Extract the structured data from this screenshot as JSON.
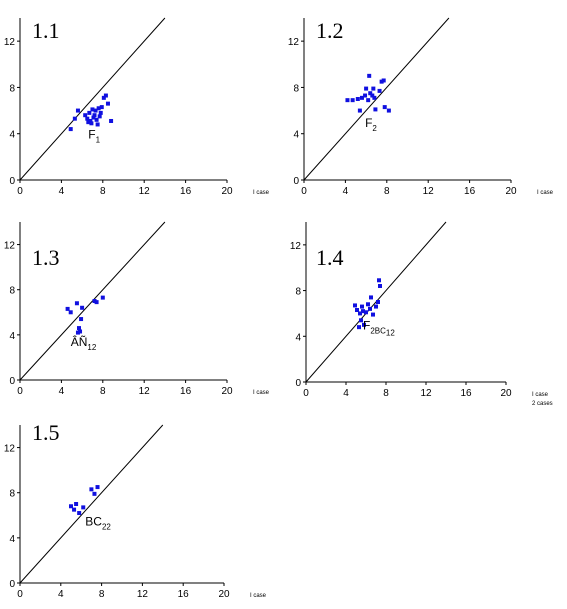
{
  "chart_data": [
    {
      "type": "scatter",
      "title": "1.1",
      "xlim": [
        0,
        20
      ],
      "ylim": [
        0,
        14
      ],
      "xticks": [
        "0",
        "4",
        "8",
        "12",
        "16",
        "20"
      ],
      "yticks": [
        "0",
        "4",
        "8",
        "12"
      ],
      "xlabel_lines": [
        "I case"
      ],
      "annotation": {
        "main": "F",
        "sub": "1",
        "x": 6.6,
        "y": 3.6
      },
      "reference_line": "y = x",
      "points": [
        [
          4.9,
          4.4
        ],
        [
          5.3,
          5.3
        ],
        [
          5.6,
          6.0
        ],
        [
          6.3,
          5.6
        ],
        [
          6.5,
          5.3
        ],
        [
          6.6,
          5.0
        ],
        [
          6.7,
          5.8
        ],
        [
          6.8,
          5.1
        ],
        [
          6.9,
          4.9
        ],
        [
          7.0,
          6.1
        ],
        [
          7.1,
          5.4
        ],
        [
          7.2,
          5.6
        ],
        [
          7.3,
          6.0
        ],
        [
          7.4,
          5.2
        ],
        [
          7.5,
          4.8
        ],
        [
          7.6,
          6.2
        ],
        [
          7.7,
          5.5
        ],
        [
          7.8,
          5.8
        ],
        [
          7.9,
          6.3
        ],
        [
          8.1,
          7.1
        ],
        [
          8.3,
          7.3
        ],
        [
          8.5,
          6.6
        ],
        [
          8.8,
          5.1
        ]
      ]
    },
    {
      "type": "scatter",
      "title": "1.2",
      "xlim": [
        0,
        20
      ],
      "ylim": [
        0,
        14
      ],
      "xticks": [
        "0",
        "4",
        "8",
        "12",
        "16",
        "20"
      ],
      "yticks": [
        "0",
        "4",
        "8",
        "12"
      ],
      "xlabel_lines": [
        "I case"
      ],
      "annotation": {
        "main": "F",
        "sub": "2",
        "x": 5.9,
        "y": 4.6
      },
      "reference_line": "y = x",
      "points": [
        [
          4.2,
          6.9
        ],
        [
          4.7,
          6.9
        ],
        [
          5.2,
          7.0
        ],
        [
          5.4,
          6.0
        ],
        [
          5.6,
          7.1
        ],
        [
          5.9,
          7.3
        ],
        [
          6.0,
          7.9
        ],
        [
          6.2,
          6.9
        ],
        [
          6.3,
          9.0
        ],
        [
          6.4,
          7.5
        ],
        [
          6.6,
          7.3
        ],
        [
          6.7,
          7.9
        ],
        [
          6.8,
          7.1
        ],
        [
          6.9,
          6.1
        ],
        [
          7.3,
          7.7
        ],
        [
          7.5,
          8.5
        ],
        [
          7.7,
          8.6
        ],
        [
          7.8,
          6.3
        ],
        [
          8.2,
          6.0
        ]
      ]
    },
    {
      "type": "scatter",
      "title": "1.3",
      "xlim": [
        0,
        20
      ],
      "ylim": [
        0,
        14
      ],
      "xticks": [
        "0",
        "4",
        "8",
        "12",
        "16",
        "20"
      ],
      "yticks": [
        "0",
        "4",
        "8",
        "12"
      ],
      "xlabel_lines": [
        "I case"
      ],
      "annotation": {
        "main": "ÂÑ",
        "sub": "12",
        "x": 4.9,
        "y": 3.0
      },
      "reference_line": "y = x",
      "points": [
        [
          4.6,
          6.3
        ],
        [
          4.9,
          6.0
        ],
        [
          5.5,
          6.8
        ],
        [
          5.6,
          4.2
        ],
        [
          5.7,
          4.6
        ],
        [
          5.8,
          4.3
        ],
        [
          5.9,
          5.4
        ],
        [
          6.0,
          6.4
        ],
        [
          7.2,
          7.0
        ],
        [
          7.4,
          6.9
        ],
        [
          8.0,
          7.3
        ]
      ]
    },
    {
      "type": "scatter",
      "title": "1.4",
      "xlim": [
        0,
        20
      ],
      "ylim": [
        0,
        14
      ],
      "xticks": [
        "0",
        "4",
        "8",
        "12",
        "16",
        "20"
      ],
      "yticks": [
        "0",
        "4",
        "8",
        "12"
      ],
      "xlabel_lines": [
        "I case",
        "2 cases"
      ],
      "annotation": {
        "main": "F",
        "sub": "2BC",
        "sub2": "12",
        "x": 5.7,
        "y": 4.6
      },
      "reference_line": "y = x",
      "points": [
        [
          4.9,
          6.7
        ],
        [
          5.1,
          6.3
        ],
        [
          5.3,
          4.8
        ],
        [
          5.4,
          6.0
        ],
        [
          5.5,
          5.4
        ],
        [
          5.6,
          6.6
        ],
        [
          5.7,
          6.2
        ],
        [
          5.8,
          5.0
        ],
        [
          6.0,
          6.1
        ],
        [
          6.2,
          6.8
        ],
        [
          6.4,
          6.4
        ],
        [
          6.5,
          7.4
        ],
        [
          6.7,
          5.9
        ],
        [
          7.0,
          6.6
        ],
        [
          7.2,
          7.0
        ],
        [
          7.3,
          8.9
        ],
        [
          7.4,
          8.4
        ]
      ]
    },
    {
      "type": "scatter",
      "title": "1.5",
      "xlim": [
        0,
        20
      ],
      "ylim": [
        0,
        14
      ],
      "xticks": [
        "0",
        "4",
        "8",
        "12",
        "16",
        "20"
      ],
      "yticks": [
        "0",
        "4",
        "8",
        "12"
      ],
      "xlabel_lines": [
        "I case"
      ],
      "annotation": {
        "main": "BC",
        "sub": "22",
        "x": 6.4,
        "y": 5.1
      },
      "reference_line": "y = x",
      "points": [
        [
          5.0,
          6.8
        ],
        [
          5.3,
          6.5
        ],
        [
          5.5,
          7.0
        ],
        [
          5.8,
          6.2
        ],
        [
          6.2,
          6.7
        ],
        [
          7.0,
          8.3
        ],
        [
          7.3,
          7.9
        ],
        [
          7.6,
          8.5
        ]
      ]
    }
  ],
  "colors": {
    "points": "#1010e0",
    "axes": "#000000",
    "line": "#000000"
  }
}
